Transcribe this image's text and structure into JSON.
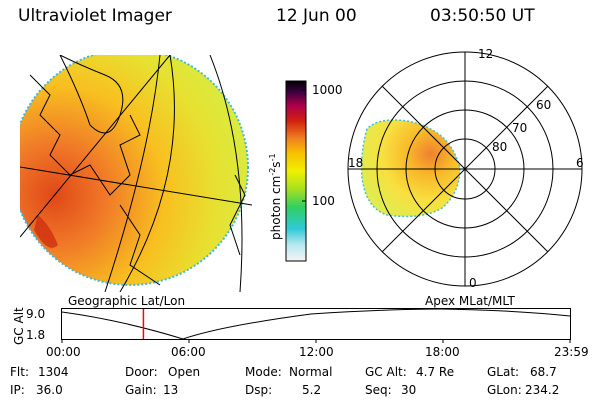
{
  "header": {
    "title": "Ultraviolet Imager",
    "date": "12 Jun 00",
    "time": "03:50:50 UT"
  },
  "colorbar": {
    "label": "photon cm",
    "label_exp1": "-2",
    "label_mid": "s",
    "label_exp2": "-1",
    "tick_high": "1000",
    "tick_low": "100"
  },
  "left_panel": {
    "caption": "Geographic Lat/Lon"
  },
  "right_panel": {
    "caption": "Apex MLat/MLT",
    "mlt_labels": {
      "top": "12",
      "left": "18",
      "right": "6",
      "bottom": "0"
    },
    "lat_labels": [
      "60",
      "70",
      "80"
    ]
  },
  "timeline": {
    "ylabel": "GC Alt",
    "ytick_top": "9.0",
    "ytick_bottom": "1.8",
    "xticks": [
      "00:00",
      "06:00",
      "12:00",
      "18:00",
      "23:59"
    ],
    "current_time_hours": 3.847
  },
  "info": {
    "flt_label": "Flt:",
    "flt_value": "1304",
    "ip_label": "IP:",
    "ip_value": "36.0",
    "door_label": "Door:",
    "door_value": "Open",
    "gain_label": "Gain:",
    "gain_value": "13",
    "mode_label": "Mode:",
    "mode_value": "Normal",
    "dsp_label": "Dsp:",
    "dsp_value": "5.2",
    "gcalt_label": "GC Alt:",
    "gcalt_value": "4.7 Re",
    "seq_label": "Seq:",
    "seq_value": "30",
    "glat_label": "GLat:",
    "glat_value": "68.7",
    "glon_label": "GLon:",
    "glon_value": "234.2"
  },
  "colors": {
    "background": "#ffffff",
    "marker": "#ff0000",
    "colormap": [
      "#f4f4f4",
      "#b8e8f0",
      "#30c8d8",
      "#30d060",
      "#a8e020",
      "#f0f000",
      "#f8c000",
      "#f08020",
      "#d02010",
      "#b0004a",
      "#3a0040",
      "#000000"
    ]
  }
}
